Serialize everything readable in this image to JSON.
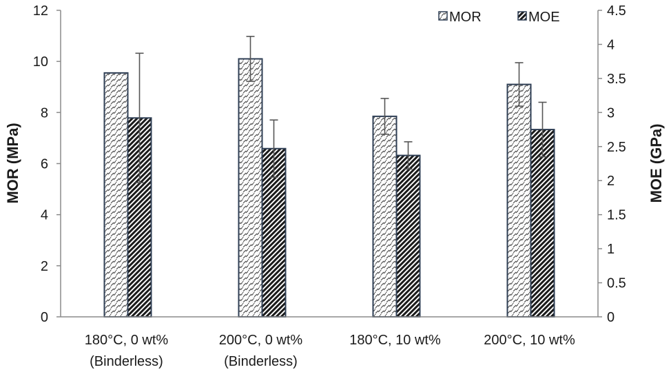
{
  "chart_data": {
    "type": "bar",
    "categories": [
      [
        "180°C, 0 wt%",
        "(Binderless)"
      ],
      [
        "200°C, 0 wt%",
        "(Binderless)"
      ],
      [
        "180°C, 10 wt%",
        ""
      ],
      [
        "200°C, 10 wt%",
        ""
      ]
    ],
    "series": [
      {
        "name": "MOR",
        "axis": "left",
        "pattern": "light",
        "values": [
          9.55,
          10.1,
          7.85,
          9.1
        ],
        "errors": [
          0,
          0.88,
          0.7,
          0.85
        ]
      },
      {
        "name": "MOE",
        "axis": "right",
        "pattern": "dark",
        "values": [
          2.92,
          2.47,
          2.37,
          2.75
        ],
        "errors": [
          0.95,
          0.42,
          0.2,
          0.4
        ]
      }
    ],
    "ylabel": "MOR (MPa)",
    "y2label": "MOE (GPa)",
    "ylim": [
      0,
      12
    ],
    "y2lim": [
      0,
      4.5
    ],
    "yticks": [
      "0",
      "2",
      "4",
      "6",
      "8",
      "10",
      "12"
    ],
    "y2ticks": [
      "0",
      "0.5",
      "1",
      "1.5",
      "2",
      "2.5",
      "3",
      "3.5",
      "4",
      "4.5"
    ],
    "legend_position": "top-right",
    "grid": false
  },
  "colors": {
    "bar_stroke": "#2f3f55",
    "hatch_dark": "#1a1a1a",
    "axis": "#8a8a8a",
    "error_bar": "#555555"
  }
}
